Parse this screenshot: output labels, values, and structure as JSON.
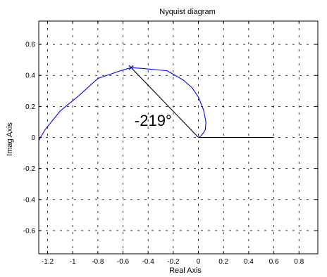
{
  "chart_data": {
    "type": "line",
    "title": "Nyquist diagram",
    "xlabel": "Real Axis",
    "ylabel": "Imag Axis",
    "xlim": [
      -1.27,
      0.95
    ],
    "ylim": [
      -0.75,
      0.75
    ],
    "grid": true,
    "grid_style": "dashed",
    "xticks": [
      -1.2,
      -1,
      -0.8,
      -0.6,
      -0.4,
      -0.2,
      0,
      0.2,
      0.4,
      0.6,
      0.8
    ],
    "xtick_labels": [
      "-1.2",
      "-1",
      "-0.8",
      "-0.6",
      "-0.4",
      "-0.2",
      "0",
      "0.2",
      "0.4",
      "0.6",
      "0.8"
    ],
    "yticks": [
      -0.6,
      -0.4,
      -0.2,
      0,
      0.2,
      0.4,
      0.6
    ],
    "ytick_labels": [
      "-0.6",
      "-0.4",
      "-0.2",
      "0",
      "0.2",
      "0.4",
      "0.6"
    ],
    "series": [
      {
        "color": "#0000ff",
        "x": [
          -1.27,
          -1.22,
          -1.1,
          -0.95,
          -0.8,
          -0.62,
          -0.535,
          -0.45,
          -0.25,
          -0.12,
          -0.05,
          0.0,
          0.04,
          0.06,
          0.055,
          0.04,
          0.02,
          0.0
        ],
        "y": [
          -0.02,
          0.05,
          0.17,
          0.27,
          0.38,
          0.43,
          0.45,
          0.445,
          0.43,
          0.37,
          0.32,
          0.26,
          0.18,
          0.1,
          0.05,
          0.03,
          0.01,
          0.0
        ]
      }
    ],
    "marker_point": {
      "x": -0.535,
      "y": 0.45,
      "symbol": "x"
    },
    "reference_lines": [
      {
        "color": "#000000",
        "x": [
          0,
          -0.535
        ],
        "y": [
          0,
          0.45
        ]
      },
      {
        "color": "#000000",
        "x": [
          0,
          0.6
        ],
        "y": [
          0,
          0
        ]
      }
    ],
    "annotations": [
      {
        "text": "-219°",
        "x": -0.36,
        "y": 0.075
      }
    ]
  }
}
